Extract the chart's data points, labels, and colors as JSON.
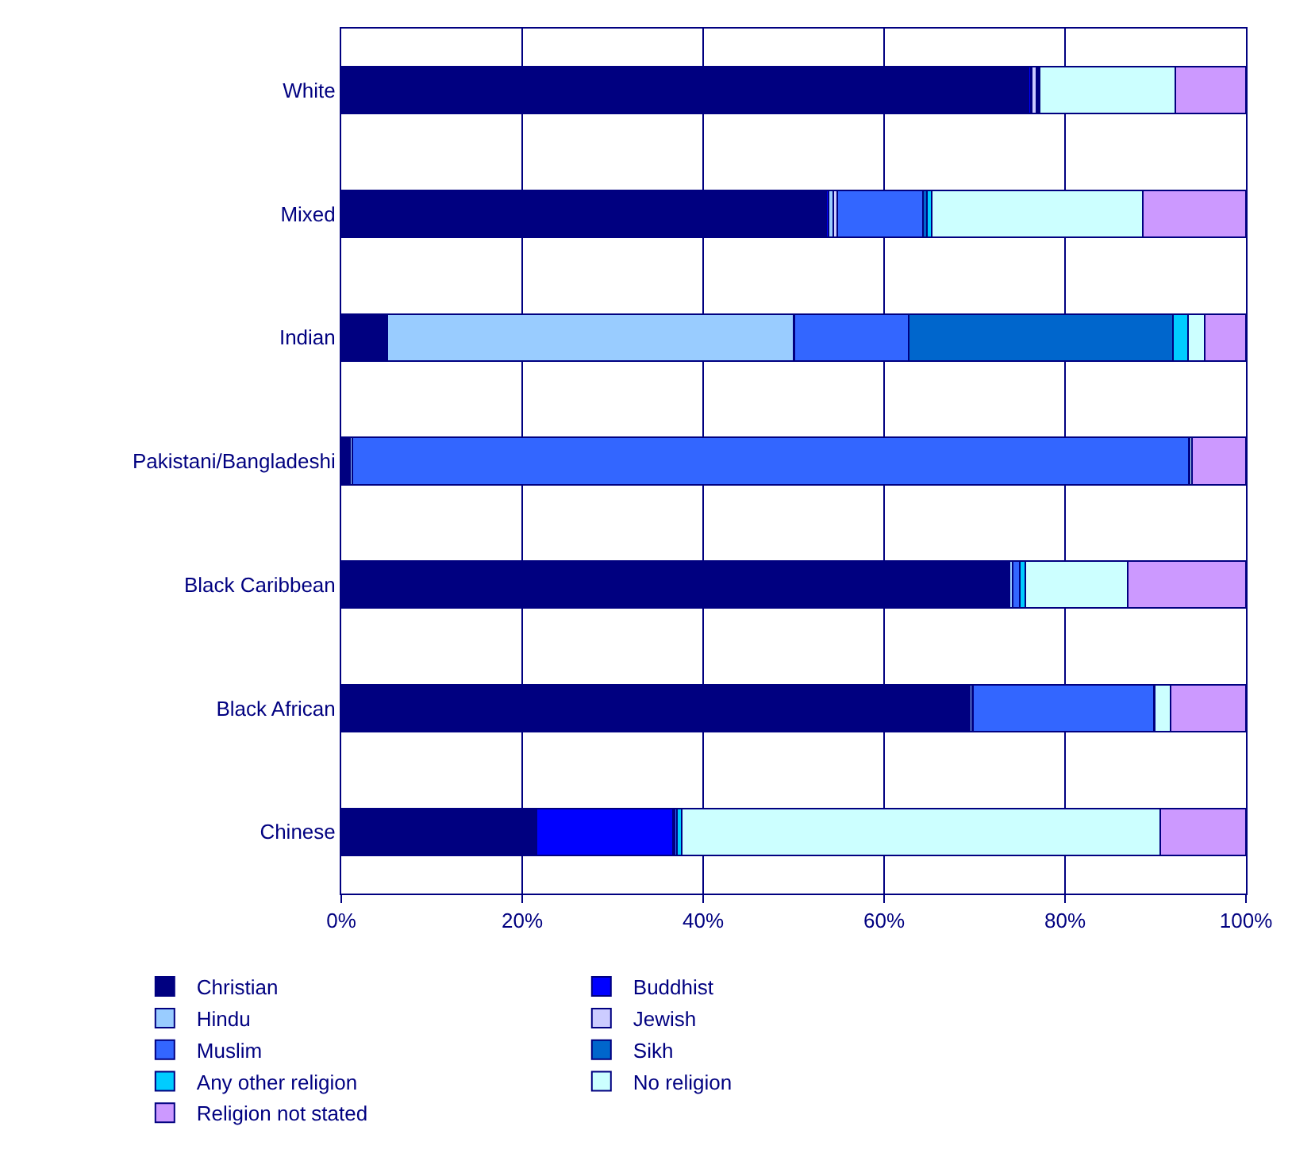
{
  "chart_data": {
    "type": "bar",
    "orientation": "horizontal",
    "stacked": true,
    "categories": [
      "White",
      "Mixed",
      "Indian",
      "Pakistani/Bangladeshi",
      "Black Caribbean",
      "Black African",
      "Chinese"
    ],
    "series": [
      {
        "name": "Christian",
        "color": "#000080",
        "values": [
          76.0,
          53.6,
          4.9,
          1.0,
          73.7,
          69.4,
          21.6
        ]
      },
      {
        "name": "Buddhist",
        "color": "#0000ff",
        "values": [
          0.2,
          0.3,
          0.2,
          0,
          0.2,
          0.1,
          15.1
        ]
      },
      {
        "name": "Hindu",
        "color": "#99ccff",
        "values": [
          0.1,
          0.5,
          44.9,
          0.2,
          0.3,
          0.2,
          0.1
        ]
      },
      {
        "name": "Jewish",
        "color": "#ccccff",
        "values": [
          0.5,
          0.4,
          0.1,
          0,
          0,
          0.1,
          0
        ]
      },
      {
        "name": "Muslim",
        "color": "#3366ff",
        "values": [
          0.2,
          9.5,
          12.6,
          92.5,
          0.8,
          20.0,
          0.3
        ]
      },
      {
        "name": "Sikh",
        "color": "#0066cc",
        "values": [
          0,
          0.4,
          29.2,
          0,
          0,
          0,
          0
        ]
      },
      {
        "name": "Any other religion",
        "color": "#00ccff",
        "values": [
          0.2,
          0.6,
          1.7,
          0.1,
          0.6,
          0.1,
          0.5
        ]
      },
      {
        "name": "No religion",
        "color": "#ccffff",
        "values": [
          15.0,
          23.3,
          1.8,
          0.2,
          11.3,
          1.8,
          52.9
        ]
      },
      {
        "name": "Religion not stated",
        "color": "#cc99ff",
        "values": [
          7.8,
          11.4,
          4.6,
          6.0,
          13.1,
          8.3,
          9.5
        ]
      }
    ],
    "xlim": [
      0,
      100
    ],
    "xticks": [
      {
        "value": 0,
        "label": "0%"
      },
      {
        "value": 20,
        "label": "20%"
      },
      {
        "value": 40,
        "label": "40%"
      },
      {
        "value": 60,
        "label": "60%"
      },
      {
        "value": 80,
        "label": "80%"
      },
      {
        "value": 100,
        "label": "100%"
      }
    ],
    "grid": "x",
    "legend": "bottom"
  }
}
